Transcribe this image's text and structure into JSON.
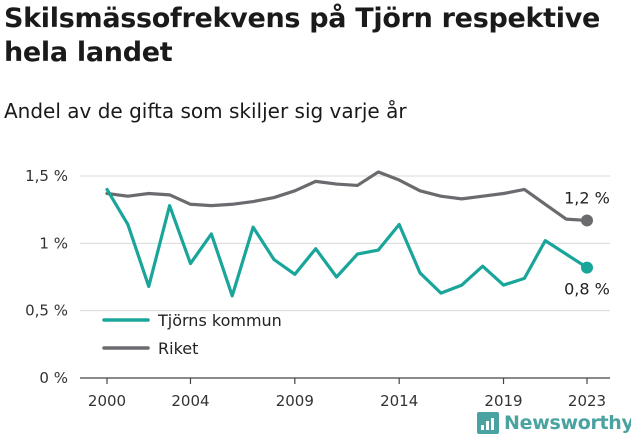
{
  "title": "Skilsmässofrekvens på Tjörn respektive hela landet",
  "subtitle": "Andel av de gifta som skiljer sig varje år",
  "brand": "Newsworthy",
  "colors": {
    "tjorn": "#1aa59a",
    "riket": "#6b6b6f",
    "grid": "#d9d9d9",
    "axis": "#444444",
    "brand": "#4aa3a0"
  },
  "chart_data": {
    "type": "line",
    "x": [
      2000,
      2001,
      2002,
      2003,
      2004,
      2005,
      2006,
      2007,
      2008,
      2009,
      2010,
      2011,
      2012,
      2013,
      2014,
      2015,
      2016,
      2017,
      2018,
      2019,
      2020,
      2021,
      2022,
      2023
    ],
    "xticks": [
      2000,
      2004,
      2009,
      2014,
      2019,
      2023
    ],
    "xtick_labels": [
      "2000",
      "2004",
      "2009",
      "2014",
      "2019",
      "2023"
    ],
    "xlim": [
      2000,
      2023
    ],
    "ylim": [
      0,
      1.5
    ],
    "yticks": [
      0,
      0.5,
      1,
      1.5
    ],
    "ytick_labels": [
      "0 %",
      "0,5 %",
      "1 %",
      "1,5 %"
    ],
    "grid": true,
    "legend": "bottom-left",
    "series": [
      {
        "name": "Tjörns kommun",
        "values": [
          1.4,
          1.14,
          0.68,
          1.28,
          0.85,
          1.07,
          0.61,
          1.12,
          0.88,
          0.77,
          0.96,
          0.75,
          0.92,
          0.95,
          1.14,
          0.78,
          0.63,
          0.69,
          0.83,
          0.69,
          0.74,
          1.02,
          0.92,
          0.82
        ],
        "end_label": "0,8 %"
      },
      {
        "name": "Riket",
        "values": [
          1.37,
          1.35,
          1.37,
          1.36,
          1.29,
          1.28,
          1.29,
          1.31,
          1.34,
          1.39,
          1.46,
          1.44,
          1.43,
          1.53,
          1.47,
          1.39,
          1.35,
          1.33,
          1.35,
          1.37,
          1.4,
          1.29,
          1.18,
          1.17
        ],
        "end_label": "1,2 %"
      }
    ]
  }
}
